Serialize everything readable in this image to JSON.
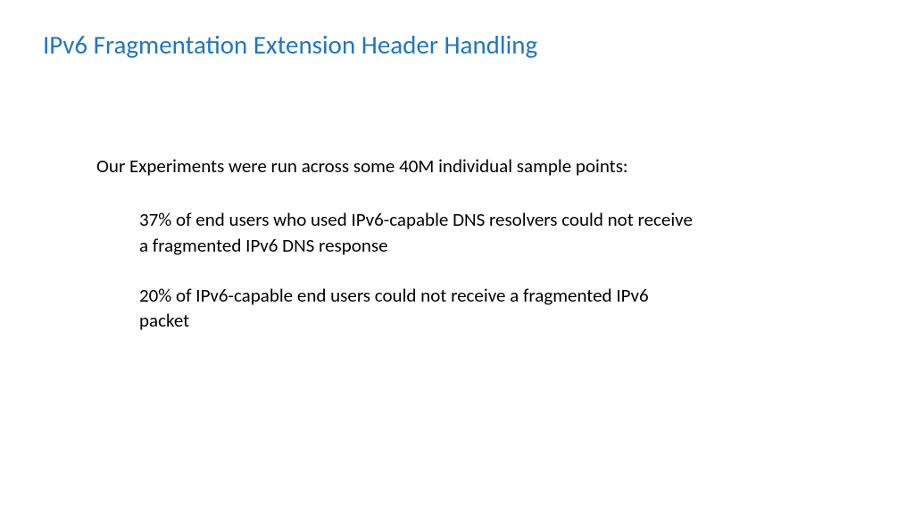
{
  "slide": {
    "title": "IPv6 Fragmentation Extension Header Handling",
    "intro": "Our Experiments were run across some 40M individual sample points:",
    "bullets": [
      "37% of end users who used IPv6-capable DNS resolvers could not receive a fragmented IPv6 DNS response",
      "20% of IPv6-capable end users could not receive a fragmented IPv6 packet"
    ]
  },
  "colors": {
    "title_color": "#1f77c4",
    "body_color": "#000000",
    "background": "#ffffff"
  },
  "typography": {
    "title_fontsize": 29,
    "body_fontsize": 21,
    "font_family": "Calibri"
  }
}
